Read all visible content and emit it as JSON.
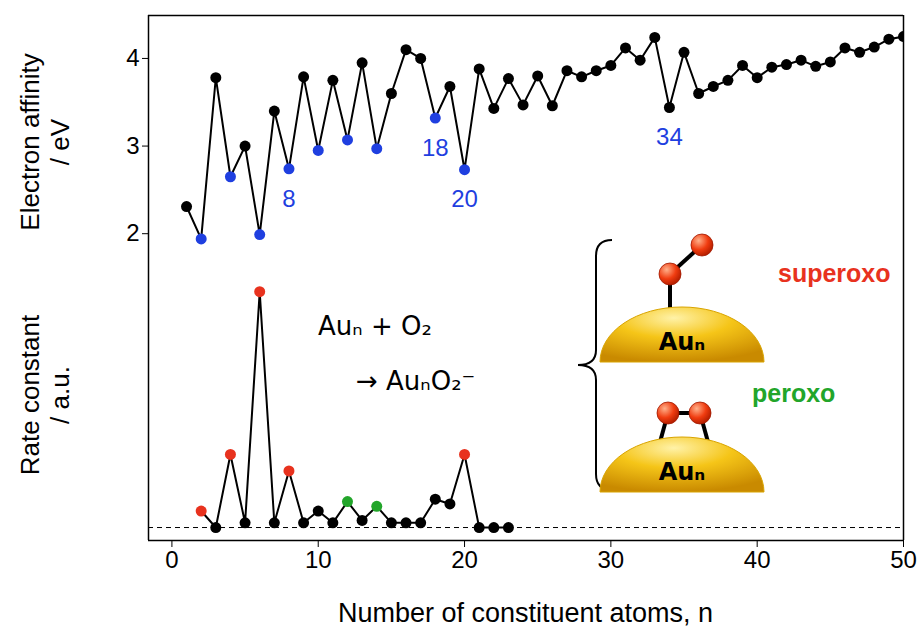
{
  "chart_data": [
    {
      "type": "line",
      "y_label": "Electron affinity / eV",
      "x": [
        1,
        2,
        3,
        4,
        5,
        6,
        7,
        8,
        9,
        10,
        11,
        12,
        13,
        14,
        15,
        16,
        17,
        18,
        19,
        20,
        21,
        22,
        23,
        24,
        25,
        26,
        27,
        28,
        29,
        30,
        31,
        32,
        33,
        34,
        35,
        36,
        37,
        38,
        39,
        40,
        41,
        42,
        43,
        44,
        45,
        46,
        47,
        48,
        49,
        50
      ],
      "values": [
        2.31,
        1.94,
        3.78,
        2.65,
        3.0,
        1.99,
        3.4,
        2.74,
        3.79,
        2.95,
        3.75,
        3.07,
        3.95,
        2.97,
        3.6,
        4.1,
        4.0,
        3.32,
        3.68,
        2.73,
        3.88,
        3.43,
        3.77,
        3.47,
        3.8,
        3.46,
        3.86,
        3.79,
        3.86,
        3.92,
        4.12,
        3.98,
        4.24,
        3.44,
        4.07,
        3.6,
        3.68,
        3.75,
        3.92,
        3.78,
        3.9,
        3.93,
        3.98,
        3.91,
        3.96,
        4.12,
        4.07,
        4.13,
        4.22,
        4.25
      ],
      "color": "#000000",
      "colors": [
        "#000000",
        "#1f3fe0",
        "#000000",
        "#1f3fe0",
        "#000000",
        "#1f3fe0",
        "#000000",
        "#1f3fe0",
        "#000000",
        "#1f3fe0",
        "#000000",
        "#1f3fe0",
        "#000000",
        "#1f3fe0",
        "#000000",
        "#000000",
        "#000000",
        "#1f3fe0",
        "#000000",
        "#1f3fe0",
        "#000000",
        "#000000",
        "#000000",
        "#000000",
        "#000000",
        "#000000",
        "#000000",
        "#000000",
        "#000000",
        "#000000",
        "#000000",
        "#000000",
        "#000000",
        "#000000",
        "#000000",
        "#000000",
        "#000000",
        "#000000",
        "#000000",
        "#000000",
        "#000000",
        "#000000",
        "#000000",
        "#000000",
        "#000000",
        "#000000",
        "#000000",
        "#000000",
        "#000000",
        "#000000"
      ],
      "marker": "circle",
      "xlim": [
        -1.6,
        50
      ],
      "ylim": [
        1.58,
        4.49
      ],
      "yticks": [
        2,
        3,
        4
      ],
      "tick_labels": "y",
      "annotations": [
        {
          "text": "8",
          "x": 8,
          "color": "#1f3fe0"
        },
        {
          "text": "18",
          "x": 18,
          "color": "#1f3fe0"
        },
        {
          "text": "20",
          "x": 20,
          "color": "#1f3fe0"
        },
        {
          "text": "34",
          "x": 34,
          "color": "#1f3fe0"
        }
      ]
    },
    {
      "type": "line",
      "y_label": "Rate constant / a.u.",
      "x_label": "Number of constituent atoms, n",
      "x": [
        2,
        3,
        4,
        5,
        6,
        7,
        8,
        9,
        10,
        11,
        12,
        13,
        14,
        15,
        16,
        17,
        18,
        19,
        20,
        21,
        22,
        23
      ],
      "values": [
        7,
        0,
        31,
        2,
        100,
        2,
        24,
        2,
        7,
        2,
        11,
        3,
        9,
        2,
        2,
        2,
        12,
        10,
        31,
        0,
        0,
        0
      ],
      "color": "#000000",
      "colors": [
        "#e8321e",
        "#000000",
        "#e8321e",
        "#000000",
        "#e8321e",
        "#000000",
        "#e8321e",
        "#000000",
        "#000000",
        "#000000",
        "#22a52a",
        "#000000",
        "#22a52a",
        "#000000",
        "#000000",
        "#000000",
        "#000000",
        "#000000",
        "#e8321e",
        "#000000",
        "#000000",
        "#000000"
      ],
      "marker": "circle",
      "xlim": [
        -1.6,
        50
      ],
      "xticks": [
        0,
        10,
        20,
        30,
        40,
        50
      ],
      "ylim": [
        -5.5,
        109
      ],
      "yticks": [],
      "tick_labels": "x",
      "baseline": 0,
      "reaction": [
        "Auₙ + O₂",
        "→ AuₙO₂⁻"
      ],
      "structures": [
        {
          "name": "superoxo",
          "color": "#e8321e",
          "cluster_label": "Auₙ"
        },
        {
          "name": "peroxo",
          "color": "#22a52a",
          "cluster_label": "Auₙ"
        }
      ]
    }
  ]
}
